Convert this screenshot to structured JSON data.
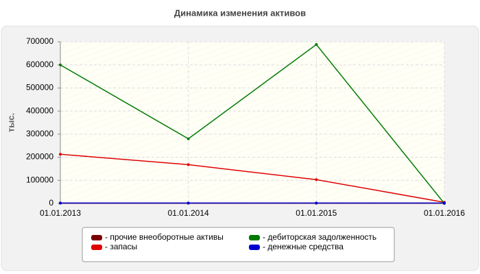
{
  "chart_data": {
    "type": "line",
    "title": "Динамика изменения активов",
    "y_label": "тыс.",
    "categories": [
      "01.01.2013",
      "01.01.2014",
      "01.01.2015",
      "01.01.2016"
    ],
    "series": [
      {
        "name": "- прочие внеоборотные активы",
        "color": "#7a0000",
        "values": [
          1000,
          1000,
          1000,
          1000
        ]
      },
      {
        "name": "- запасы",
        "color": "#e00000",
        "values": [
          213000,
          168000,
          103000,
          5000
        ]
      },
      {
        "name": "- дебиторская задолженность",
        "color": "#007a00",
        "values": [
          600000,
          280000,
          688000,
          0
        ]
      },
      {
        "name": "- денежные средства",
        "color": "#0000d0",
        "values": [
          2000,
          2000,
          2000,
          2000
        ]
      }
    ],
    "ylim": [
      0,
      700000
    ],
    "yticks": [
      0,
      100000,
      200000,
      300000,
      400000,
      500000,
      600000,
      700000
    ],
    "grid": true,
    "legend": "bottom"
  }
}
